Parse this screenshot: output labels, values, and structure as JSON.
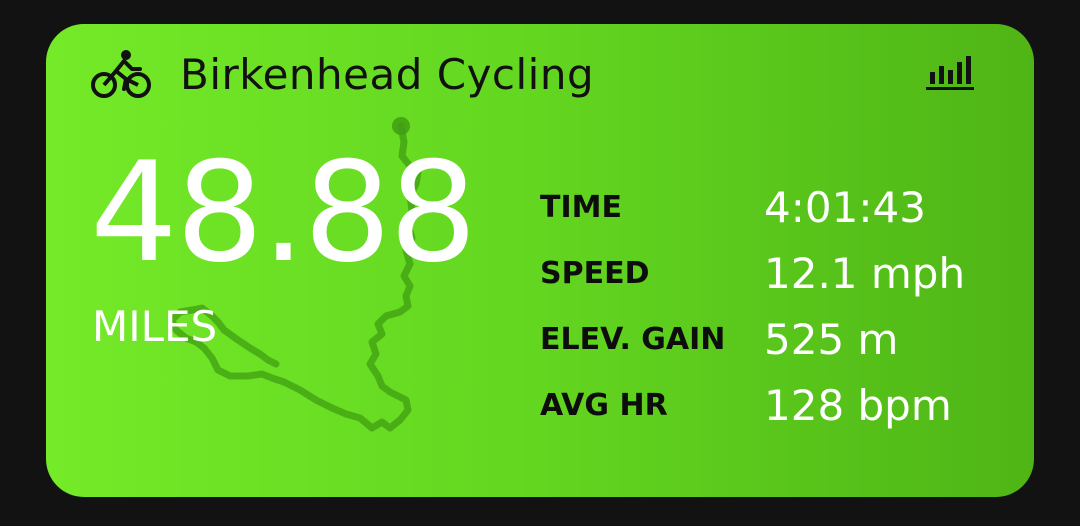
{
  "header": {
    "title": "Birkenhead Cycling",
    "activity_icon": "bike-icon",
    "stats_icon": "bar-chart-icon"
  },
  "distance": {
    "value": "48.88",
    "unit": "MILES"
  },
  "stats": [
    {
      "label": "TIME",
      "value": "4:01:43"
    },
    {
      "label": "SPEED",
      "value": "12.1 mph"
    },
    {
      "label": "ELEV. GAIN",
      "value": "525 m"
    },
    {
      "label": "AVG HR",
      "value": "128 bpm"
    }
  ],
  "colors": {
    "card_start": "#74ea28",
    "card_end": "#4fb516",
    "route": "#3a9e10",
    "text_dark": "#111111",
    "text_light": "#ffffff",
    "background": "#121212"
  }
}
